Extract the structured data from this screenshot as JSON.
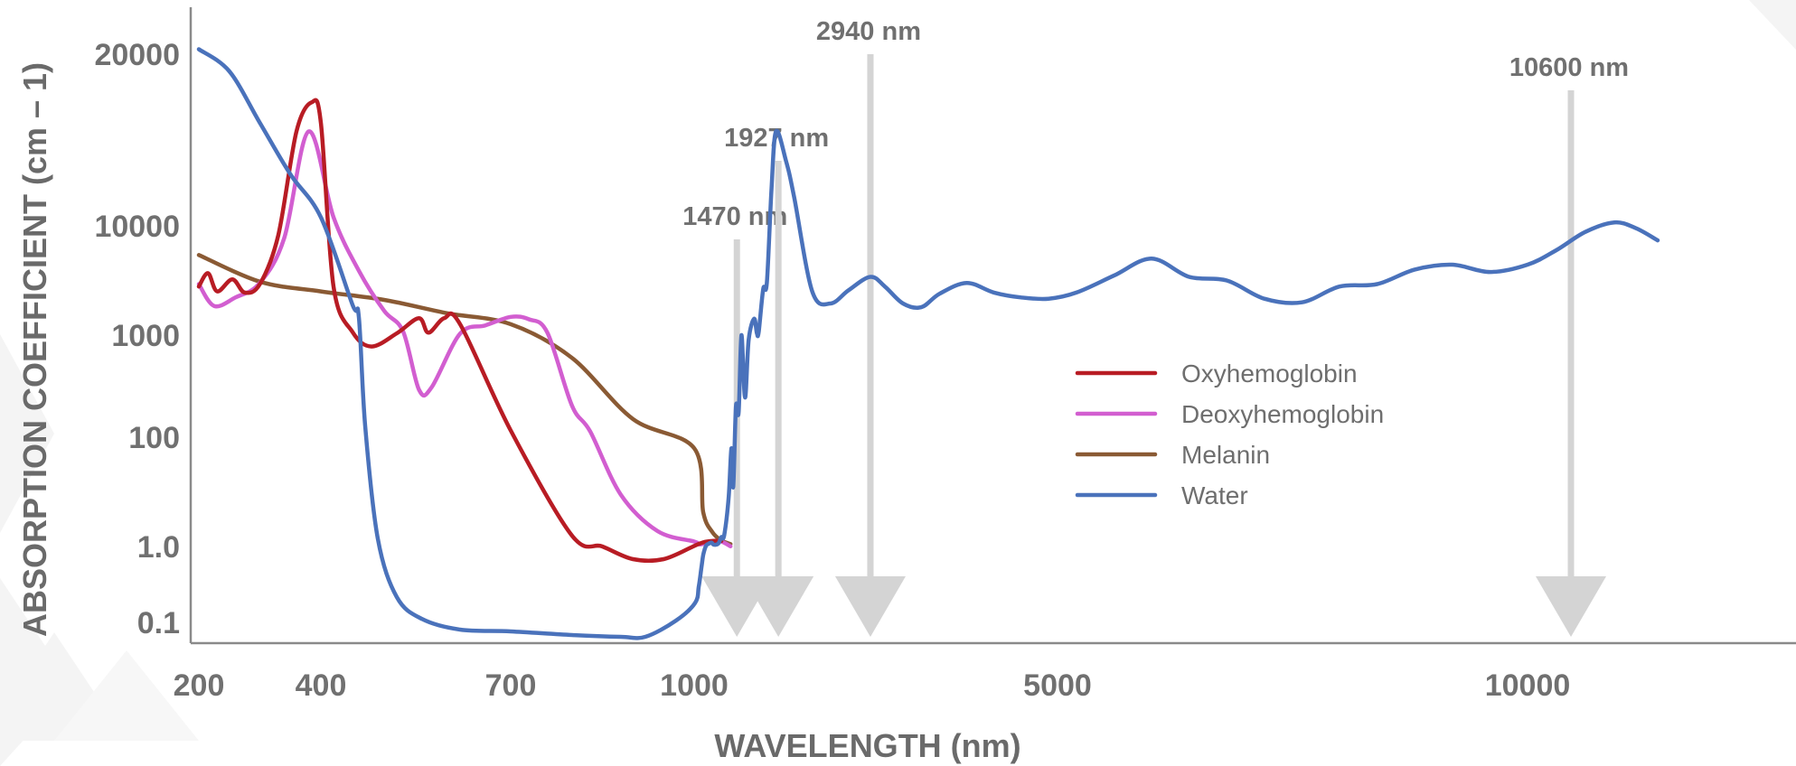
{
  "chart_data": {
    "type": "line",
    "title": "",
    "xlabel": "WAVELENGTH (nm)",
    "ylabel": "ABSORPTION COEFFICIENT (cm – 1)",
    "x_ticks": [
      {
        "value": 200,
        "label": "200"
      },
      {
        "value": 400,
        "label": "400"
      },
      {
        "value": 700,
        "label": "700"
      },
      {
        "value": 1000,
        "label": "1000"
      },
      {
        "value": 5000,
        "label": "5000"
      },
      {
        "value": 10000,
        "label": "10000"
      }
    ],
    "y_ticks": [
      {
        "value": 0.1,
        "label": "0.1"
      },
      {
        "value": 1.0,
        "label": "1.0"
      },
      {
        "value": 100,
        "label": "100"
      },
      {
        "value": 1000,
        "label": "1000"
      },
      {
        "value": 10000,
        "label": "10000"
      },
      {
        "value": 20000,
        "label": "20000"
      }
    ],
    "markers": [
      {
        "label": "1470 nm",
        "value": 1470
      },
      {
        "label": "1927 nm",
        "value": 1927
      },
      {
        "label": "2940 nm",
        "value": 2940
      },
      {
        "label": "10600 nm",
        "value": 10600
      }
    ],
    "legend_position": "center-right",
    "series": [
      {
        "name": "Oxyhemoglobin",
        "color": "#b81c24",
        "points": [
          [
            200,
            5000
          ],
          [
            215,
            6100
          ],
          [
            230,
            4600
          ],
          [
            255,
            5600
          ],
          [
            275,
            4500
          ],
          [
            300,
            5200
          ],
          [
            330,
            9200
          ],
          [
            360,
            15500
          ],
          [
            385,
            17200
          ],
          [
            400,
            16000
          ],
          [
            420,
            5000
          ],
          [
            450,
            1250
          ],
          [
            480,
            900
          ],
          [
            520,
            1150
          ],
          [
            555,
            2400
          ],
          [
            570,
            1200
          ],
          [
            595,
            2400
          ],
          [
            620,
            1900
          ],
          [
            700,
            160
          ],
          [
            800,
            11
          ],
          [
            850,
            1.0
          ],
          [
            900,
            0.85
          ],
          [
            950,
            0.85
          ],
          [
            1000,
            1.5
          ],
          [
            1100,
            4.8
          ],
          [
            1200,
            6.0
          ],
          [
            1300,
            6.0
          ]
        ]
      },
      {
        "name": "Deoxyhemoglobin",
        "color": "#d25ed0",
        "points": [
          [
            200,
            5200
          ],
          [
            225,
            3400
          ],
          [
            260,
            4100
          ],
          [
            300,
            5300
          ],
          [
            340,
            9000
          ],
          [
            380,
            15500
          ],
          [
            420,
            10500
          ],
          [
            460,
            6300
          ],
          [
            500,
            3000
          ],
          [
            530,
            1300
          ],
          [
            555,
            520
          ],
          [
            575,
            540
          ],
          [
            620,
            1120
          ],
          [
            660,
            1800
          ],
          [
            700,
            2500
          ],
          [
            730,
            2300
          ],
          [
            760,
            1200
          ],
          [
            800,
            380
          ],
          [
            830,
            150
          ],
          [
            880,
            48
          ],
          [
            940,
            15
          ],
          [
            1000,
            5.5
          ],
          [
            1050,
            3.0
          ],
          [
            1100,
            3.3
          ],
          [
            1200,
            6.0
          ],
          [
            1300,
            5.5
          ],
          [
            1400,
            1.2
          ]
        ]
      },
      {
        "name": "Melanin",
        "color": "#8a5a34",
        "points": [
          [
            200,
            7600
          ],
          [
            300,
            5400
          ],
          [
            400,
            4600
          ],
          [
            500,
            3900
          ],
          [
            600,
            2800
          ],
          [
            700,
            1900
          ],
          [
            800,
            800
          ],
          [
            900,
            260
          ],
          [
            1000,
            90
          ],
          [
            1100,
            32
          ],
          [
            1200,
            14
          ],
          [
            1300,
            6.5
          ],
          [
            1400,
            3.2
          ]
        ]
      },
      {
        "name": "Water",
        "color": "#4a72bb",
        "points": [
          [
            200,
            21000
          ],
          [
            250,
            19000
          ],
          [
            300,
            16000
          ],
          [
            350,
            13000
          ],
          [
            400,
            10500
          ],
          [
            450,
            3500
          ],
          [
            460,
            2500
          ],
          [
            470,
            200
          ],
          [
            490,
            8
          ],
          [
            520,
            0.4
          ],
          [
            560,
            0.14
          ],
          [
            620,
            0.08
          ],
          [
            700,
            0.075
          ],
          [
            800,
            0.065
          ],
          [
            880,
            0.06
          ],
          [
            920,
            0.06
          ],
          [
            970,
            0.12
          ],
          [
            1010,
            0.33
          ],
          [
            1050,
            0.52
          ],
          [
            1080,
            0.75
          ],
          [
            1100,
            0.9
          ],
          [
            1130,
            1.6
          ],
          [
            1160,
            3.5
          ],
          [
            1190,
            4.6
          ],
          [
            1210,
            2.9
          ],
          [
            1240,
            2.6
          ],
          [
            1270,
            4.0
          ],
          [
            1300,
            9.5
          ],
          [
            1330,
            11
          ],
          [
            1380,
            46
          ],
          [
            1410,
            90
          ],
          [
            1430,
            55
          ],
          [
            1460,
            370
          ],
          [
            1490,
            320
          ],
          [
            1520,
            1000
          ],
          [
            1560,
            450
          ],
          [
            1600,
            960
          ],
          [
            1660,
            2350
          ],
          [
            1690,
            1180
          ],
          [
            1710,
            1250
          ],
          [
            1760,
            4800
          ],
          [
            1800,
            5300
          ],
          [
            1850,
            12000
          ],
          [
            1900,
            15500
          ],
          [
            2010,
            13800
          ],
          [
            2100,
            11700
          ],
          [
            2300,
            4600
          ],
          [
            2500,
            3600
          ],
          [
            2700,
            4700
          ],
          [
            2940,
            5800
          ],
          [
            3100,
            5000
          ],
          [
            3300,
            3600
          ],
          [
            3500,
            3300
          ],
          [
            3700,
            4400
          ],
          [
            4000,
            5300
          ],
          [
            4300,
            4500
          ],
          [
            4600,
            4100
          ],
          [
            4900,
            4000
          ],
          [
            5200,
            4500
          ],
          [
            5600,
            5900
          ],
          [
            6000,
            7300
          ],
          [
            6400,
            5800
          ],
          [
            6800,
            5500
          ],
          [
            7200,
            4000
          ],
          [
            7600,
            3700
          ],
          [
            8000,
            5000
          ],
          [
            8400,
            5200
          ],
          [
            8800,
            6400
          ],
          [
            9200,
            6800
          ],
          [
            9600,
            6200
          ],
          [
            10000,
            6800
          ],
          [
            10400,
            8000
          ],
          [
            10800,
            9500
          ],
          [
            11200,
            10200
          ],
          [
            11500,
            9800
          ],
          [
            11800,
            8800
          ]
        ]
      }
    ]
  }
}
